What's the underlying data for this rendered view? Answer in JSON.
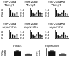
{
  "chart_data": [
    {
      "type": "bar",
      "title": "miR-208a Thrap1",
      "categories": [
        null,
        null,
        null,
        null
      ],
      "values": [
        1.0,
        0.45,
        0.35,
        0.55
      ],
      "colors": [
        "#111111",
        "#111111",
        "#555555",
        "#aaaaaa"
      ],
      "errors": [
        0.06,
        0.05,
        0.05,
        0.06
      ],
      "ylim": [
        0,
        1.45
      ],
      "yticks": [
        {
          "value": 0,
          "label": "0.0"
        },
        0.5,
        {
          "value": 1,
          "label": "1.0"
        }
      ],
      "grid": false,
      "tick_labels": "y"
    },
    {
      "type": "bar",
      "title": "miR-208b Thrap1",
      "categories": [
        null,
        null,
        null,
        null,
        null,
        null,
        null
      ],
      "values": [
        1.0,
        0.42,
        0.32,
        0.5,
        0.95,
        0.48,
        0.38
      ],
      "colors": [
        "#111111",
        "#111111",
        "#555555",
        "#aaaaaa",
        "#111111",
        "#555555",
        "#aaaaaa"
      ],
      "errors": [
        0.06,
        0.05,
        0.04,
        0.05,
        0.06,
        0.05,
        0.04
      ],
      "ylim": [
        0,
        1.45
      ],
      "yticks": [
        {
          "value": 0,
          "label": "0.0"
        },
        0.5,
        {
          "value": 1,
          "label": "1.0"
        }
      ],
      "grid": false,
      "tick_labels": "y"
    },
    {
      "type": "bar",
      "title": "miR-208a+b Thrap1",
      "categories": [
        null,
        null,
        null,
        null,
        null,
        null,
        null
      ],
      "values": [
        1.0,
        0.38,
        0.28,
        0.45,
        0.92,
        0.4,
        0.32
      ],
      "colors": [
        "#111111",
        "#111111",
        "#555555",
        "#aaaaaa",
        "#111111",
        "#555555",
        "#aaaaaa"
      ],
      "errors": [
        0.06,
        0.04,
        0.04,
        0.05,
        0.06,
        0.04,
        0.03
      ],
      "ylim": [
        0,
        1.45
      ],
      "yticks": [
        {
          "value": 0,
          "label": "0.0"
        },
        0.5,
        {
          "value": 1,
          "label": "1.0"
        }
      ],
      "grid": false,
      "tick_labels": "y"
    },
    {
      "type": "bar",
      "title": "miR-208a myostatin",
      "categories": [
        null,
        null,
        null,
        null
      ],
      "values": [
        1.0,
        0.5,
        0.35,
        0.58
      ],
      "colors": [
        "#111111",
        "#111111",
        "#555555",
        "#aaaaaa"
      ],
      "errors": [
        0.06,
        0.05,
        0.05,
        0.06
      ],
      "ylim": [
        0,
        1.45
      ],
      "yticks": [
        {
          "value": 0,
          "label": "0.0"
        },
        0.5,
        {
          "value": 1,
          "label": "1.0"
        }
      ],
      "grid": false,
      "tick_labels": "y"
    },
    {
      "type": "bar",
      "title": "miR-208b myostatin",
      "categories": [
        null,
        null,
        null,
        null,
        null,
        null,
        null
      ],
      "values": [
        1.0,
        0.45,
        0.3,
        0.52,
        0.95,
        0.48,
        0.38
      ],
      "colors": [
        "#111111",
        "#111111",
        "#555555",
        "#aaaaaa",
        "#111111",
        "#555555",
        "#aaaaaa"
      ],
      "errors": [
        0.06,
        0.05,
        0.04,
        0.05,
        0.06,
        0.05,
        0.04
      ],
      "ylim": [
        0,
        1.45
      ],
      "yticks": [
        {
          "value": 0,
          "label": "0.0"
        },
        0.5,
        {
          "value": 1,
          "label": "1.0"
        }
      ],
      "grid": false,
      "tick_labels": "y"
    },
    {
      "type": "bar",
      "title": "miR-208a+b myostatin",
      "categories": [
        null,
        null,
        null,
        null,
        null,
        null,
        null
      ],
      "values": [
        1.0,
        0.4,
        0.26,
        0.44,
        0.9,
        0.42,
        0.3
      ],
      "colors": [
        "#111111",
        "#111111",
        "#555555",
        "#aaaaaa",
        "#111111",
        "#555555",
        "#aaaaaa"
      ],
      "errors": [
        0.06,
        0.04,
        0.04,
        0.05,
        0.06,
        0.04,
        0.03
      ],
      "ylim": [
        0,
        1.45
      ],
      "yticks": [
        {
          "value": 0,
          "label": "0.0"
        },
        0.5,
        {
          "value": 1,
          "label": "1.0"
        }
      ],
      "grid": false,
      "tick_labels": "y"
    },
    {
      "type": "bar",
      "title": "Thrap1",
      "categories": [
        null,
        null
      ],
      "values": [
        1.0,
        0.35
      ],
      "colors": [
        "#111111",
        "#555555"
      ],
      "errors": [
        0.08,
        0.05
      ],
      "ylim": [
        0,
        1.5
      ],
      "yticks": [
        {
          "value": 0,
          "label": "0.0"
        },
        0.5,
        {
          "value": 1,
          "label": "1.0"
        }
      ],
      "grid": false,
      "tick_labels": "y"
    },
    {
      "type": "bar",
      "title": "myostatin",
      "categories": [
        null,
        null
      ],
      "values": [
        1.0,
        0.4
      ],
      "colors": [
        "#111111",
        "#555555"
      ],
      "errors": [
        0.08,
        0.05
      ],
      "ylim": [
        0,
        1.5
      ],
      "yticks": [
        {
          "value": 0,
          "label": "0.0"
        },
        0.5,
        {
          "value": 1,
          "label": "1.0"
        }
      ],
      "grid": false,
      "tick_labels": "y"
    }
  ]
}
